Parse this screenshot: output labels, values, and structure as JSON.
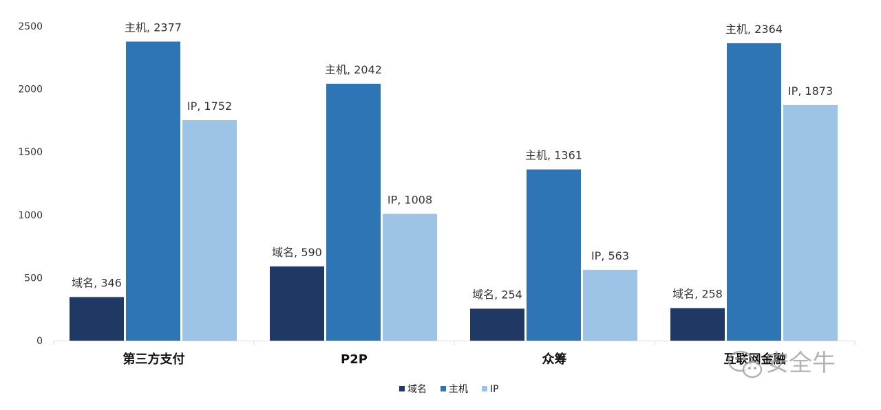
{
  "chart_data": {
    "type": "bar",
    "categories": [
      "第三方支付",
      "P2P",
      "众筹",
      "互联网金融"
    ],
    "series": [
      {
        "name": "域名",
        "values": [
          346,
          590,
          254,
          258
        ]
      },
      {
        "name": "主机",
        "values": [
          2377,
          2042,
          1361,
          2364
        ]
      },
      {
        "name": "IP",
        "values": [
          1752,
          1008,
          563,
          1873
        ]
      }
    ],
    "ylim": [
      0,
      2500
    ],
    "yticks": [
      0,
      500,
      1000,
      1500,
      2000,
      2500
    ],
    "grid": false,
    "legend_position": "bottom",
    "data_labels": true
  },
  "colors": {
    "series": [
      "#1f3864",
      "#2e75b6",
      "#9dc3e6"
    ],
    "axis": "#d9d9d9"
  },
  "watermark": {
    "text": "安全牛",
    "icon": "wechat-icon"
  }
}
